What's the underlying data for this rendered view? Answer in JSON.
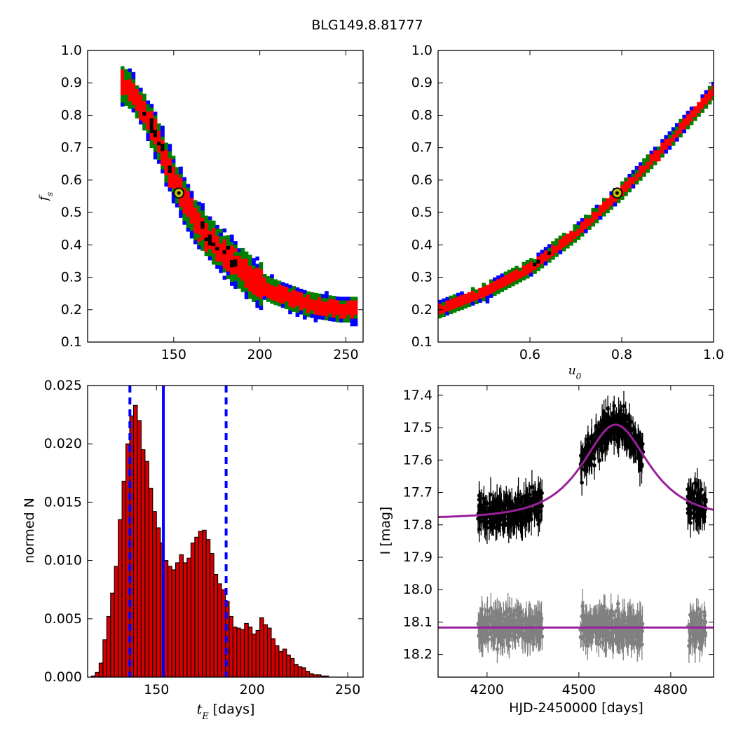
{
  "figure_title": "BLG149.8.81777",
  "colors": {
    "level3": "#0000ff",
    "level2": "#008000",
    "level1": "#ff0000",
    "peak": "#000000",
    "marker_fill": "#bfbf00",
    "hist_fill": "#d40000",
    "median_line": "#0000ff",
    "model": "#9a209a",
    "data_top": "#000000",
    "data_bottom": "#808080"
  },
  "chart_data": [
    {
      "id": "tE-fs",
      "type": "heatmap",
      "title": "",
      "xlabel": "",
      "ylabel": "f_s",
      "xlim": [
        100,
        260
      ],
      "ylim": [
        0.1,
        1.0
      ],
      "xticks": [
        150,
        200,
        250
      ],
      "yticks": [
        0.1,
        0.2,
        0.3,
        0.4,
        0.5,
        0.6,
        0.7,
        0.8,
        0.9,
        1.0
      ],
      "best_fit": {
        "x": 153,
        "y": 0.56
      },
      "description_levels": [
        "black = highest density",
        "red",
        "green",
        "blue = outermost"
      ],
      "ridge": [
        [
          118,
          0.9
        ],
        [
          125,
          0.87
        ],
        [
          133,
          0.8
        ],
        [
          140,
          0.72
        ],
        [
          145,
          0.65
        ],
        [
          150,
          0.59
        ],
        [
          155,
          0.54
        ],
        [
          160,
          0.49
        ],
        [
          168,
          0.43
        ],
        [
          176,
          0.38
        ],
        [
          185,
          0.34
        ],
        [
          195,
          0.29
        ],
        [
          205,
          0.26
        ],
        [
          215,
          0.24
        ],
        [
          228,
          0.215
        ],
        [
          245,
          0.2
        ],
        [
          255,
          0.2
        ]
      ]
    },
    {
      "id": "u0-fs",
      "type": "heatmap",
      "title": "",
      "xlabel": "u_0",
      "ylabel": "",
      "xlim": [
        0.4,
        1.0
      ],
      "ylim": [
        0.1,
        1.0
      ],
      "xticks": [
        0.6,
        0.8,
        1.0
      ],
      "yticks": [
        0.1,
        0.2,
        0.3,
        0.4,
        0.5,
        0.6,
        0.7,
        0.8,
        0.9,
        1.0
      ],
      "best_fit": {
        "x": 0.79,
        "y": 0.56
      },
      "ridge": [
        [
          0.4,
          0.2
        ],
        [
          0.5,
          0.255
        ],
        [
          0.6,
          0.33
        ],
        [
          0.7,
          0.44
        ],
        [
          0.8,
          0.57
        ],
        [
          0.9,
          0.72
        ],
        [
          1.0,
          0.88
        ]
      ]
    },
    {
      "id": "tE-hist",
      "type": "bar",
      "title": "",
      "xlabel": "t_E [days]",
      "ylabel": "normed N",
      "xlim": [
        114,
        258
      ],
      "ylim": [
        0,
        0.025
      ],
      "xticks": [
        150,
        200,
        250
      ],
      "yticks": [
        "0.000",
        "0.005",
        "0.010",
        "0.015",
        "0.020",
        "0.025"
      ],
      "bin_start": 116,
      "bin_width": 2,
      "values": [
        0.0001,
        0.0004,
        0.0012,
        0.0032,
        0.0052,
        0.0072,
        0.0095,
        0.0135,
        0.0168,
        0.02,
        0.0224,
        0.0233,
        0.022,
        0.0195,
        0.0185,
        0.0162,
        0.0142,
        0.0128,
        0.0115,
        0.01,
        0.0095,
        0.0092,
        0.0098,
        0.0105,
        0.0098,
        0.0102,
        0.0115,
        0.012,
        0.0125,
        0.0126,
        0.0118,
        0.0106,
        0.0088,
        0.008,
        0.0075,
        0.0065,
        0.0052,
        0.0043,
        0.0042,
        0.0041,
        0.0046,
        0.0043,
        0.0037,
        0.004,
        0.0051,
        0.0045,
        0.0042,
        0.0033,
        0.0027,
        0.0022,
        0.0024,
        0.0019,
        0.0016,
        0.0011,
        0.0009,
        0.0008,
        0.0005,
        0.0003,
        0.0002,
        0.0002,
        0.0001,
        0.0001
      ],
      "median": 153.6,
      "lower": 136.1,
      "upper": 186.4
    },
    {
      "id": "lightcurve",
      "type": "scatter",
      "title": "",
      "xlabel": "HJD-2450000 [days]",
      "ylabel": "I [mag]",
      "xlim": [
        4040,
        4940
      ],
      "ylim": [
        18.27,
        17.37
      ],
      "xticks": [
        4200,
        4500,
        4800
      ],
      "yticks": [
        "17.4",
        "17.5",
        "17.6",
        "17.7",
        "17.8",
        "17.9",
        "18.0",
        "18.1",
        "18.2"
      ],
      "model": {
        "t0": 4620,
        "tE": 153,
        "u0": 0.79,
        "fs": 0.56,
        "baseline": 17.78
      },
      "top_series": {
        "name": "",
        "seasons": [
          [
            4170,
            4380,
            17.73
          ],
          [
            4505,
            4710,
            17.5
          ],
          [
            4855,
            4915,
            17.73
          ]
        ]
      },
      "bottom_series": {
        "name": "",
        "baseline": 18.117,
        "seasons": [
          [
            4170,
            4380
          ],
          [
            4505,
            4710
          ],
          [
            4855,
            4915
          ]
        ]
      }
    }
  ]
}
